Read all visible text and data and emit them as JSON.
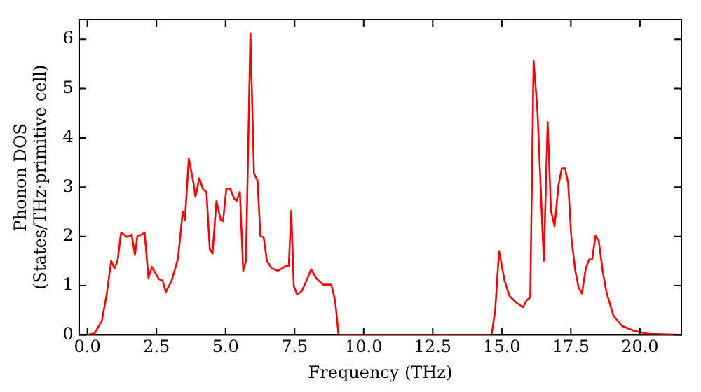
{
  "chart_data": {
    "type": "line",
    "xlabel": "Frequency (THz)",
    "ylabel": "Phonon DOS\n(States/THz·primitive cell)",
    "xlim": [
      -0.3,
      21.5
    ],
    "ylim": [
      0,
      6.4
    ],
    "xticks": [
      {
        "value": 0,
        "label": "0.0"
      },
      {
        "value": 2.5,
        "label": "2.5"
      },
      {
        "value": 5,
        "label": "5.0"
      },
      {
        "value": 7.5,
        "label": "7.5"
      },
      {
        "value": 10,
        "label": "10.0"
      },
      {
        "value": 12.5,
        "label": "12.5"
      },
      {
        "value": 15,
        "label": "15.0"
      },
      {
        "value": 17.5,
        "label": "17.5"
      },
      {
        "value": 20,
        "label": "20.0"
      }
    ],
    "yticks": [
      0,
      1,
      2,
      3,
      4,
      5,
      6
    ],
    "grid": false,
    "legend": false,
    "marker": "none",
    "line_style": "solid",
    "series": [
      {
        "color": "#ff0000",
        "x": [
          0,
          0.26,
          0.52,
          0.69,
          0.86,
          0.98,
          1.09,
          1.22,
          1.43,
          1.55,
          1.6,
          1.72,
          1.81,
          1.95,
          2.07,
          2.21,
          2.33,
          2.59,
          2.72,
          2.84,
          3.05,
          3.28,
          3.45,
          3.53,
          3.67,
          3.84,
          3.91,
          4.05,
          4.19,
          4.31,
          4.43,
          4.53,
          4.67,
          4.83,
          4.91,
          5.03,
          5.17,
          5.31,
          5.4,
          5.52,
          5.64,
          5.74,
          5.9,
          6.03,
          6.16,
          6.26,
          6.38,
          6.5,
          6.67,
          6.9,
          7.19,
          7.29,
          7.38,
          7.47,
          7.59,
          7.76,
          7.93,
          8.1,
          8.28,
          8.53,
          8.83,
          8.97,
          9.09,
          14.63,
          14.76,
          14.9,
          15.1,
          15.28,
          15.51,
          15.77,
          15.91,
          16.03,
          16.15,
          16.29,
          16.52,
          16.66,
          16.78,
          16.91,
          17.05,
          17.17,
          17.29,
          17.4,
          17.52,
          17.66,
          17.78,
          17.9,
          18.04,
          18.16,
          18.27,
          18.39,
          18.51,
          18.65,
          18.79,
          19.04,
          19.35,
          19.79,
          20.31,
          21.45
        ],
        "values": [
          0,
          0.03,
          0.28,
          0.79,
          1.5,
          1.35,
          1.5,
          2.08,
          1.99,
          2.01,
          2.04,
          1.62,
          2.01,
          2.03,
          2.08,
          1.15,
          1.38,
          1.13,
          1.1,
          0.87,
          1.1,
          1.55,
          2.5,
          2.33,
          3.58,
          3.08,
          2.8,
          3.18,
          2.95,
          2.9,
          1.74,
          1.65,
          2.72,
          2.33,
          2.31,
          2.97,
          2.97,
          2.77,
          2.72,
          2.9,
          1.3,
          1.5,
          6.12,
          3.28,
          3.13,
          2.01,
          1.98,
          1.5,
          1.35,
          1.3,
          1.4,
          1.4,
          2.52,
          0.99,
          0.82,
          0.89,
          1.1,
          1.33,
          1.15,
          1.02,
          1.02,
          0.69,
          0,
          0,
          0.49,
          1.7,
          1.1,
          0.79,
          0.66,
          0.56,
          0.71,
          0.76,
          5.56,
          4.55,
          1.5,
          4.32,
          2.52,
          2.21,
          3.03,
          3.38,
          3.38,
          3.08,
          1.96,
          1.3,
          0.96,
          0.84,
          1.35,
          1.53,
          1.53,
          2.01,
          1.91,
          1.3,
          0.86,
          0.39,
          0.18,
          0.08,
          0.02,
          0
        ]
      }
    ]
  }
}
